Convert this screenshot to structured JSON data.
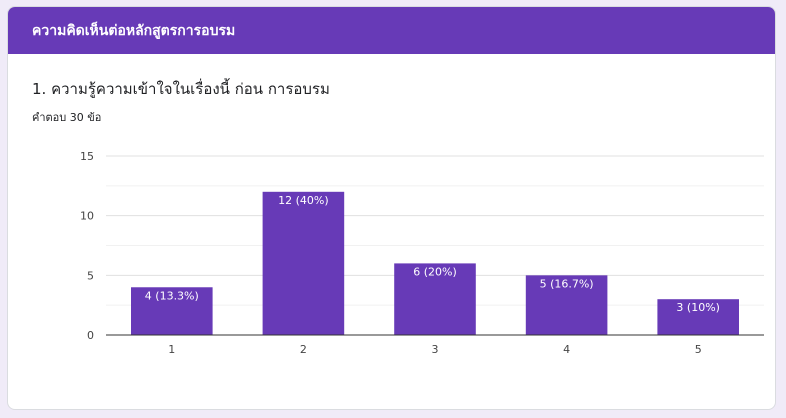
{
  "section": {
    "title": "ความคิดเห็นต่อหลักสูตรการอบรม"
  },
  "question": {
    "title": "1. ความรู้ความเข้าใจในเรื่องนี้ ก่อน การอบรม",
    "response_count": "คำตอบ 30 ข้อ"
  },
  "colors": {
    "header": "#673ab7",
    "bar": "#673ab7",
    "background": "#f0ebf8"
  },
  "chart_data": {
    "type": "bar",
    "categories": [
      "1",
      "2",
      "3",
      "4",
      "5"
    ],
    "values": [
      4,
      12,
      6,
      5,
      3
    ],
    "data_labels": [
      "4 (13.3%)",
      "12 (40%)",
      "6 (20%)",
      "5 (16.7%)",
      "3 (10%)"
    ],
    "y_ticks": [
      "0",
      "5",
      "10",
      "15"
    ],
    "ylim": [
      0,
      15
    ],
    "grid": true
  }
}
